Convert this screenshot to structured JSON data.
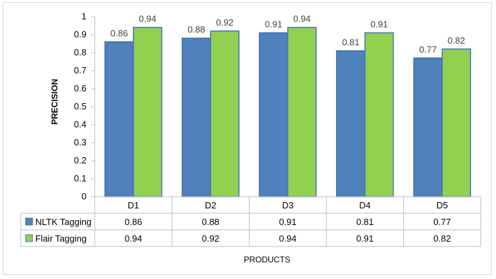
{
  "chart_data": {
    "type": "bar",
    "title": "",
    "xlabel": "PRODUCTS",
    "ylabel": "PRECISION",
    "categories": [
      "D1",
      "D2",
      "D3",
      "D4",
      "D5"
    ],
    "ylim": [
      0,
      1
    ],
    "yticks": [
      "0",
      "0.1",
      "0.2",
      "0.3",
      "0.4",
      "0.5",
      "0.6",
      "0.7",
      "0.8",
      "0.9",
      "1"
    ],
    "grid": false,
    "legend": "data-table-left",
    "series": [
      {
        "name": "NLTK Tagging",
        "values": [
          0.86,
          0.88,
          0.91,
          0.81,
          0.77
        ],
        "labels": [
          "0.86",
          "0.88",
          "0.91",
          "0.81",
          "0.77"
        ],
        "color": "#4f81bd",
        "edge": "#3f6ea3"
      },
      {
        "name": "Flair Tagging",
        "values": [
          0.94,
          0.92,
          0.94,
          0.91,
          0.82
        ],
        "labels": [
          "0.94",
          "0.92",
          "0.94",
          "0.91",
          "0.82"
        ],
        "color": "#92d050",
        "edge": "#4472c4"
      }
    ]
  }
}
